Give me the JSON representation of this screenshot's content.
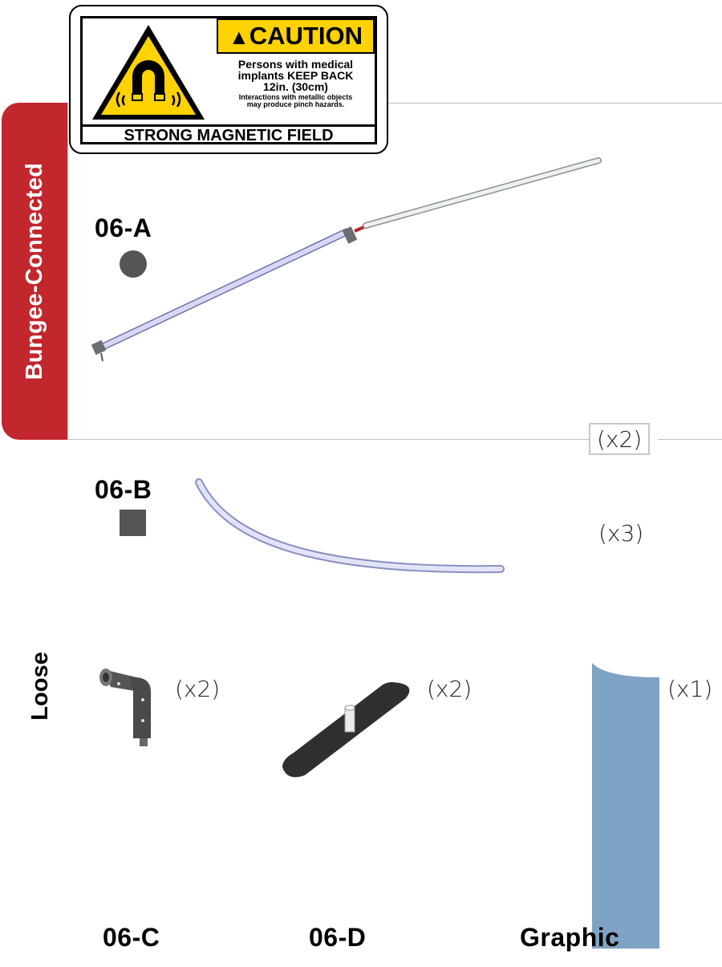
{
  "caution_label": {
    "header": "CAUTION",
    "line1": "Persons with medical",
    "line2": "implants KEEP BACK",
    "line3": "12in. (30cm)",
    "line4": "Interactions with metallic objects",
    "line5": "may produce pinch hazards.",
    "footer": "STRONG MAGNETIC FIELD",
    "icon": "magnet-warning-icon",
    "colors": {
      "header_bg": "#ffd200",
      "sign_bg": "#ffd200"
    }
  },
  "sections": {
    "bungee": {
      "label": "Bungee-Connected",
      "color": "#c1272d"
    },
    "loose": {
      "label": "Loose"
    }
  },
  "parts": {
    "a": {
      "id": "06-A",
      "qty": "(x2)",
      "marker": "circle",
      "marker_color": "#555555"
    },
    "b": {
      "id": "06-B",
      "qty": "(x3)",
      "marker": "square",
      "marker_color": "#555555"
    },
    "c": {
      "id": "06-C",
      "qty": "(x2)"
    },
    "d": {
      "id": "06-D",
      "qty": "(x2)"
    },
    "graphic": {
      "id": "Graphic",
      "qty": "(x1)",
      "color": "#7fa3c4"
    }
  }
}
